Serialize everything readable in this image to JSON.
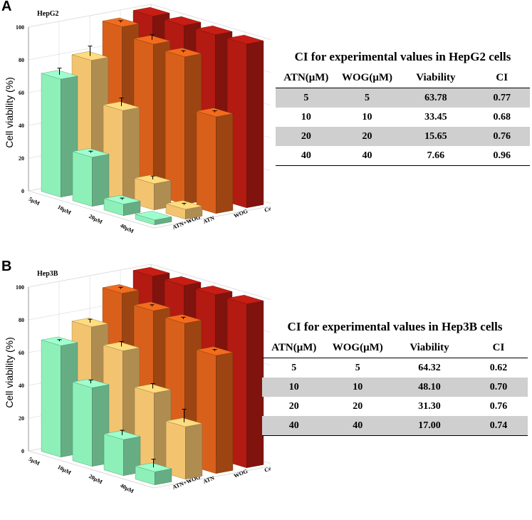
{
  "panels": [
    {
      "letter": "A",
      "table": {
        "caption": "CI for experimental  values in HepG2 cells",
        "headers": [
          "ATN(μM)",
          "WOG(μM)",
          "Viability",
          "CI"
        ],
        "rows": [
          [
            "5",
            "5",
            "63.78",
            "0.77"
          ],
          [
            "10",
            "10",
            "33.45",
            "0.68"
          ],
          [
            "20",
            "20",
            "15.65",
            "0.76"
          ],
          [
            "40",
            "40",
            "7.66",
            "0.96"
          ]
        ]
      }
    },
    {
      "letter": "B",
      "table": {
        "caption": "CI for experimental  values in Hep3B cells",
        "headers": [
          "ATN(μM)",
          "WOG(μM)",
          "Viability",
          "CI"
        ],
        "rows": [
          [
            "5",
            "5",
            "64.32",
            "0.62"
          ],
          [
            "10",
            "10",
            "48.10",
            "0.70"
          ],
          [
            "20",
            "20",
            "31.30",
            "0.76"
          ],
          [
            "40",
            "40",
            "17.00",
            "0.74"
          ]
        ]
      }
    }
  ],
  "chart_data": [
    {
      "type": "bar",
      "title": "HepG2",
      "ylabel": "Cell viability (%)",
      "ylim": [
        0,
        100
      ],
      "yticks": [
        "0",
        "20",
        "40",
        "60",
        "80",
        "100"
      ],
      "categories": [
        "5μM",
        "10μM",
        "20μM",
        "40μM"
      ],
      "series": [
        {
          "name": "Control",
          "color": "#b21a12",
          "values": [
            100,
            100,
            100,
            100
          ],
          "errors": [
            0,
            0,
            0,
            0
          ]
        },
        {
          "name": "WOG",
          "color": "#d9601a",
          "values": [
            97,
            92,
            90,
            59
          ],
          "errors": [
            1,
            3,
            1,
            1
          ]
        },
        {
          "name": "ATN",
          "color": "#f3c470",
          "values": [
            80,
            55,
            16,
            6
          ],
          "errors": [
            6,
            5,
            2,
            1
          ]
        },
        {
          "name": "ATN+WOG",
          "color": "#8df0b8",
          "values": [
            72,
            30,
            7,
            3
          ],
          "errors": [
            4,
            1,
            1,
            0
          ]
        }
      ]
    },
    {
      "type": "bar",
      "title": "Hep3B",
      "ylabel": "Cell viability (%)",
      "ylim": [
        0,
        100
      ],
      "yticks": [
        "0",
        "20",
        "40",
        "60",
        "80",
        "100"
      ],
      "categories": [
        "5μM",
        "10μM",
        "20μM",
        "40μM"
      ],
      "series": [
        {
          "name": "Control",
          "color": "#b21a12",
          "values": [
            100,
            100,
            100,
            100
          ],
          "errors": [
            0,
            0,
            0,
            0
          ]
        },
        {
          "name": "WOG",
          "color": "#d9601a",
          "values": [
            93,
            88,
            86,
            72
          ],
          "errors": [
            1,
            1,
            1,
            1
          ]
        },
        {
          "name": "ATN",
          "color": "#f3c470",
          "values": [
            76,
            67,
            47,
            32
          ],
          "errors": [
            2,
            3,
            3,
            8
          ]
        },
        {
          "name": "ATN+WOG",
          "color": "#8df0b8",
          "values": [
            68,
            48,
            22,
            8
          ],
          "errors": [
            1,
            2,
            3,
            5
          ]
        }
      ]
    }
  ]
}
